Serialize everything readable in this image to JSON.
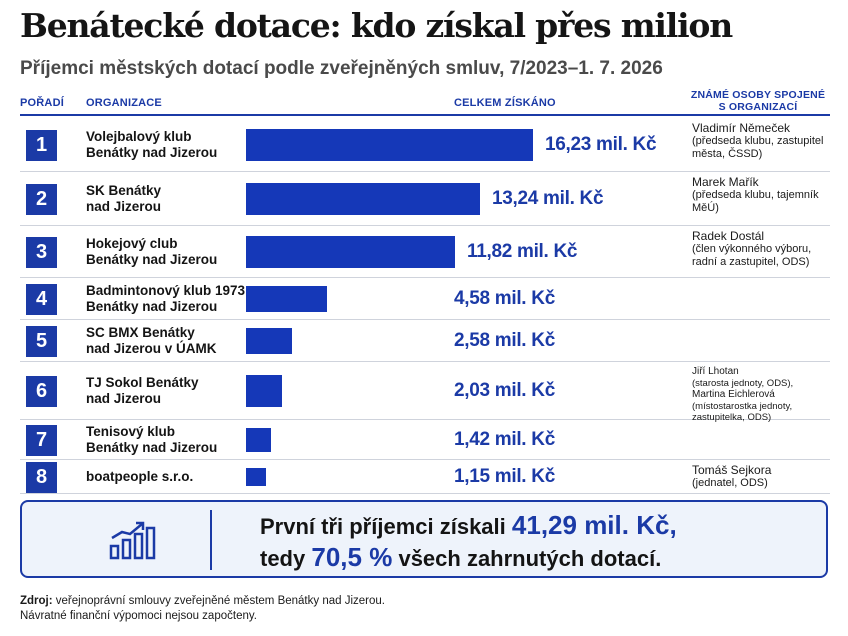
{
  "title": "Benátecké dotace: kdo získal přes milion",
  "subtitle": "Příjemci městských dotací podle zveřejněných smluv, 7/2023–1. 7. 2026",
  "columns": {
    "rank": "POŘADÍ",
    "organization": "ORGANIZACE",
    "total": "CELKEM ZÍSKÁNO",
    "persons": "ZNÁMÉ OSOBY SPOJENÉ S ORGANIZACÍ"
  },
  "chart_data": {
    "type": "bar",
    "orientation": "horizontal",
    "unit": "mil. Kč",
    "categories": [
      "Volejbalový klub Benátky nad Jizerou",
      "SK Benátky nad Jizerou",
      "Hokejový club Benátky nad Jizerou",
      "Badmintonový klub 1973 Benátky nad Jizerou",
      "SC BMX Benátky nad Jizerou v ÚAMK",
      "TJ Sokol Benátky nad Jizerou",
      "Tenisový klub Benátky nad Jizerou",
      "boatpeople s.r.o."
    ],
    "values": [
      16.23,
      13.24,
      11.82,
      4.58,
      2.58,
      2.03,
      1.42,
      1.15
    ],
    "value_labels": [
      "16,23 mil. Kč",
      "13,24 mil. Kč",
      "11,82 mil. Kč",
      "4,58 mil. Kč",
      "2,58 mil. Kč",
      "2,03 mil. Kč",
      "1,42 mil. Kč",
      "1,15 mil. Kč"
    ],
    "bar_color": "#1538b8",
    "accent_color": "#1b3aa6"
  },
  "rows": [
    {
      "rank": "1",
      "org_line1": "Volejbalový klub",
      "org_line2": "Benátky nad Jizerou",
      "person_name": "Vladimír Němeček",
      "person_role": "(předseda klubu, zastupitel města, ČSSD)"
    },
    {
      "rank": "2",
      "org_line1": "SK Benátky",
      "org_line2": "nad Jizerou",
      "person_name": "Marek Mařík",
      "person_role": "(předseda klubu, tajemník MěÚ)"
    },
    {
      "rank": "3",
      "org_line1": "Hokejový club",
      "org_line2": "Benátky nad Jizerou",
      "person_name": "Radek Dostál",
      "person_role": "(člen výkonného výboru, radní a zastupitel, ODS)"
    },
    {
      "rank": "4",
      "org_line1": "Badmintonový klub 1973",
      "org_line2": "Benátky nad Jizerou",
      "person_name": "",
      "person_role": ""
    },
    {
      "rank": "5",
      "org_line1": "SC BMX Benátky",
      "org_line2": "nad Jizerou v ÚAMK",
      "person_name": "",
      "person_role": ""
    },
    {
      "rank": "6",
      "org_line1": "TJ Sokol Benátky",
      "org_line2": "nad Jizerou",
      "person_name": "Jiří Lhotan",
      "person_role": "(starosta jednoty, ODS),",
      "person2_name": "Martina Eichlerová",
      "person2_role": "(místostarostka jednoty, zastupitelka, ODS)"
    },
    {
      "rank": "7",
      "org_line1": "Tenisový klub",
      "org_line2": "Benátky nad Jizerou",
      "person_name": "",
      "person_role": ""
    },
    {
      "rank": "8",
      "org_line1": "boatpeople s.r.o.",
      "org_line2": "",
      "person_name": "Tomáš Sejkora",
      "person_role": "(jednatel, ODS)"
    }
  ],
  "summary": {
    "text1": "První tři příjemci získali",
    "amount": "41,29 mil. Kč,",
    "text2": "tedy",
    "percent": "70,5 %",
    "text3": "všech zahrnutých dotací.",
    "icon": "bar-chart-growth-icon"
  },
  "source": {
    "label": "Zdroj:",
    "text": "veřejnoprávní smlouvy zveřejněné městem Benátky nad Jizerou.",
    "note": "Návratné finanční výpomoci nejsou započteny."
  }
}
